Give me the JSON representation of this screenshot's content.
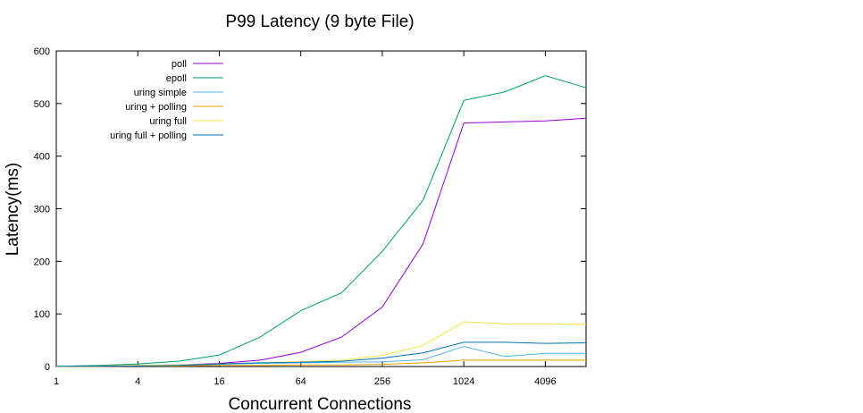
{
  "chart_data": {
    "type": "line",
    "title": "P99 Latency (9 byte File)",
    "xlabel": "Concurrent Connections",
    "ylabel": "Latency(ms)",
    "x_scale": "log2",
    "xlim": [
      1,
      8192
    ],
    "ylim": [
      0,
      600
    ],
    "x_ticks": [
      1,
      4,
      16,
      64,
      256,
      1024,
      4096
    ],
    "y_ticks": [
      0,
      100,
      200,
      300,
      400,
      500,
      600
    ],
    "grid": false,
    "legend_position": "top-left",
    "x": [
      1,
      2,
      4,
      8,
      16,
      32,
      64,
      128,
      256,
      512,
      1024,
      2048,
      4096,
      8192
    ],
    "series": [
      {
        "name": "poll",
        "color": "#9400d3",
        "values": [
          0.5,
          1,
          2,
          3,
          6,
          12,
          27,
          56,
          113,
          233,
          463,
          465,
          467,
          472
        ]
      },
      {
        "name": "epoll",
        "color": "#009e73",
        "values": [
          0.5,
          2,
          5,
          10,
          22,
          56,
          106,
          140,
          219,
          316,
          506,
          522,
          553,
          530
        ]
      },
      {
        "name": "uring simple",
        "color": "#56b4e9",
        "values": [
          0.3,
          0.6,
          1,
          2,
          4,
          6,
          7,
          8,
          9,
          13,
          38,
          19,
          25,
          25
        ]
      },
      {
        "name": "uring + polling",
        "color": "#e69f00",
        "values": [
          0.2,
          0.4,
          0.8,
          1,
          2,
          2,
          3,
          3,
          4,
          7,
          12,
          12,
          12,
          12
        ]
      },
      {
        "name": "uring full",
        "color": "#f0e442",
        "values": [
          0.5,
          1,
          2,
          3,
          5,
          7,
          9,
          12,
          21,
          40,
          85,
          81,
          81,
          80
        ]
      },
      {
        "name": "uring full + polling",
        "color": "#0072b2",
        "values": [
          0.3,
          0.6,
          1,
          2,
          5,
          7,
          8,
          10,
          16,
          26,
          46,
          46,
          44,
          45
        ]
      }
    ]
  }
}
